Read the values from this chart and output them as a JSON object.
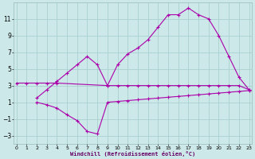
{
  "bg_color": "#cde8e8",
  "grid_color": "#a8d0d0",
  "line_color": "#aa00aa",
  "xlim": [
    -0.3,
    23.3
  ],
  "ylim": [
    -4.0,
    13.0
  ],
  "xticks": [
    0,
    1,
    2,
    3,
    4,
    5,
    6,
    7,
    8,
    9,
    10,
    11,
    12,
    13,
    14,
    15,
    16,
    17,
    18,
    19,
    20,
    21,
    22,
    23
  ],
  "yticks": [
    -3,
    -1,
    1,
    3,
    5,
    7,
    9,
    11
  ],
  "xlabel": "Windchill (Refroidissement éolien,°C)",
  "series1_x": [
    0,
    1,
    2,
    3,
    4,
    9,
    10,
    11,
    12,
    13,
    14,
    15,
    16,
    17,
    18,
    19,
    20,
    21,
    22,
    23
  ],
  "series1_y": [
    3.3,
    3.3,
    3.3,
    3.3,
    3.3,
    3.0,
    3.0,
    3.0,
    3.0,
    3.0,
    3.0,
    3.0,
    3.0,
    3.0,
    3.0,
    3.0,
    3.0,
    3.0,
    3.0,
    2.5
  ],
  "series2_x": [
    2,
    3,
    4,
    5,
    6,
    7,
    8,
    9,
    10,
    11,
    12,
    13,
    14,
    15,
    16,
    17,
    18,
    19,
    20,
    21,
    22,
    23
  ],
  "series2_y": [
    1.0,
    0.7,
    0.3,
    -0.5,
    -1.2,
    -2.5,
    -2.8,
    1.0,
    1.1,
    1.2,
    1.3,
    1.4,
    1.5,
    1.6,
    1.7,
    1.8,
    1.9,
    2.0,
    2.1,
    2.2,
    2.3,
    2.4
  ],
  "series3_x": [
    2,
    3,
    4,
    5,
    6,
    7,
    8,
    9,
    10,
    11,
    12,
    13,
    14,
    15,
    16,
    17,
    18,
    19,
    20,
    21,
    22,
    23
  ],
  "series3_y": [
    1.5,
    2.5,
    3.5,
    4.5,
    5.5,
    6.5,
    5.5,
    3.0,
    5.5,
    6.8,
    7.5,
    8.5,
    10.0,
    11.5,
    11.5,
    12.3,
    11.5,
    11.0,
    9.0,
    6.5,
    4.0,
    2.5
  ]
}
